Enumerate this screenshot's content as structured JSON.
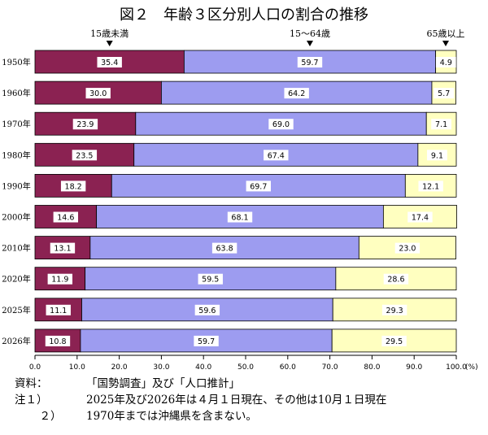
{
  "chart_data": {
    "type": "bar",
    "orientation": "horizontal",
    "stacked": true,
    "title": "図２　年齢３区分別人口の割合の推移",
    "categories": [
      "1950年",
      "1960年",
      "1970年",
      "1980年",
      "1990年",
      "2000年",
      "2010年",
      "2020年",
      "2025年",
      "2026年"
    ],
    "series": [
      {
        "name": "15歳未満",
        "color": "#8b2252",
        "values": [
          35.4,
          30.0,
          23.9,
          23.5,
          18.2,
          14.6,
          13.1,
          11.9,
          11.1,
          10.8
        ]
      },
      {
        "name": "15～64歳",
        "color": "#9d9cf0",
        "values": [
          59.7,
          64.2,
          69.0,
          67.4,
          69.7,
          68.1,
          63.8,
          59.5,
          59.6,
          59.7
        ]
      },
      {
        "name": "65歳以上",
        "color": "#ffffc0",
        "values": [
          4.9,
          5.7,
          7.1,
          9.1,
          12.1,
          17.4,
          23.0,
          28.6,
          29.3,
          29.5
        ]
      }
    ],
    "value_labels": [
      [
        "35.4",
        "59.7",
        "4.9"
      ],
      [
        "30.0",
        "64.2",
        "5.7"
      ],
      [
        "23.9",
        "69.0",
        "7.1"
      ],
      [
        "23.5",
        "67.4",
        "9.1"
      ],
      [
        "18.2",
        "69.7",
        "12.1"
      ],
      [
        "14.6",
        "68.1",
        "17.4"
      ],
      [
        "13.1",
        "63.8",
        "23.0"
      ],
      [
        "11.9",
        "59.5",
        "28.6"
      ],
      [
        "11.1",
        "59.6",
        "29.3"
      ],
      [
        "10.8",
        "59.7",
        "29.5"
      ]
    ],
    "xlim": [
      0,
      100
    ],
    "xticks": [
      "0.0",
      "10.0",
      "20.0",
      "30.0",
      "40.0",
      "50.0",
      "60.0",
      "70.0",
      "80.0",
      "90.0",
      "100.0"
    ],
    "x_unit": "(%)",
    "grid": false,
    "legend_placement": "top, markers above first bar"
  },
  "notes": {
    "source_label": "資料：",
    "source_text": "「国勢調査」及び「人口推計」",
    "note1_label": "注１）",
    "note1_text": "2025年及び2026年は４月１日現在、その他は10月１日現在",
    "note2_label": "２）",
    "note2_text": "1970年までは沖縄県を含まない。"
  }
}
